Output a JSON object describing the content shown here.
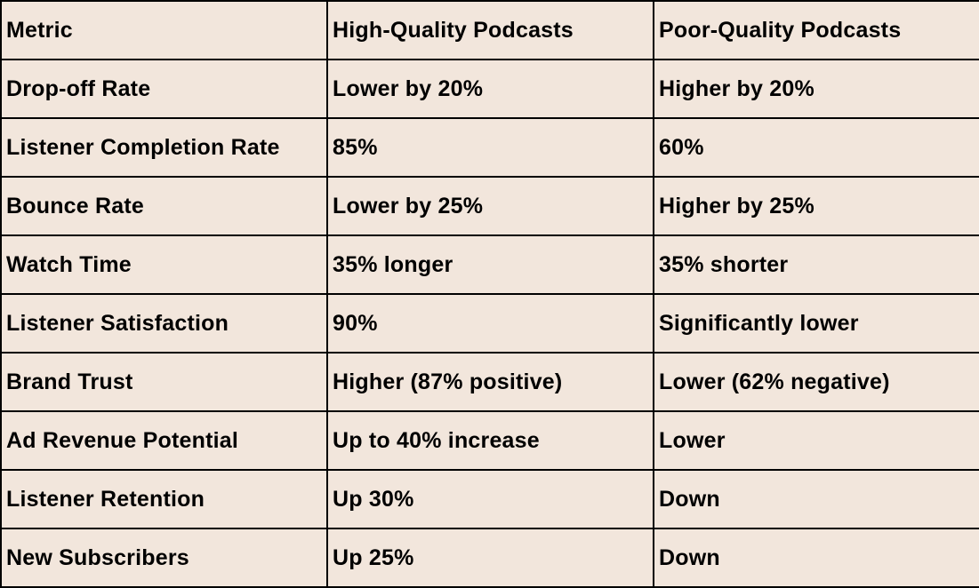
{
  "table": {
    "headers": [
      "Metric",
      "High-Quality Podcasts",
      "Poor-Quality Podcasts"
    ],
    "rows": [
      [
        "Drop-off Rate",
        "Lower by 20%",
        "Higher by 20%"
      ],
      [
        "Listener Completion Rate",
        "85%",
        "60%"
      ],
      [
        "Bounce Rate",
        "Lower by 25%",
        "Higher by 25%"
      ],
      [
        "Watch Time",
        "35% longer",
        "35% shorter"
      ],
      [
        "Listener Satisfaction",
        "90%",
        "Significantly lower"
      ],
      [
        "Brand Trust",
        "Higher (87% positive)",
        "Lower (62% negative)"
      ],
      [
        "Ad Revenue Potential",
        "Up to 40% increase",
        "Lower"
      ],
      [
        "Listener Retention",
        "Up 30%",
        "Down"
      ],
      [
        "New Subscribers",
        "Up 25%",
        "Down"
      ]
    ]
  },
  "colors": {
    "background": "#f2e6dc",
    "border": "#000000",
    "text": "#000000"
  }
}
